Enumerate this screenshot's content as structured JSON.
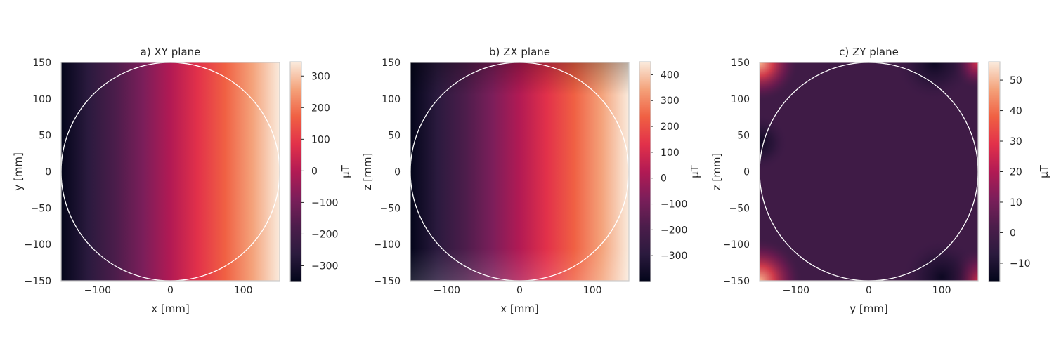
{
  "chart_data": [
    {
      "type": "heatmap",
      "title": "a) XY plane",
      "xlabel": "x [mm]",
      "ylabel": "y [mm]",
      "xlim": [
        -150,
        150
      ],
      "ylim": [
        -150,
        150
      ],
      "x_ticks": [
        -100,
        0,
        100
      ],
      "y_ticks": [
        -150,
        -100,
        -50,
        0,
        50,
        100,
        150
      ],
      "colorbar_label": "μT",
      "colorbar_range": [
        -350,
        345
      ],
      "colorbar_ticks": [
        -300,
        -200,
        -100,
        0,
        100,
        200,
        300
      ],
      "colormap": "rocket",
      "circle_radius": 150,
      "field": "linear gradient along x from about -350 μT at x=-150 to about 345 μT at x=150",
      "samples": [
        {
          "x": -150,
          "y": 0,
          "value": -350
        },
        {
          "x": -100,
          "y": 0,
          "value": -230
        },
        {
          "x": 0,
          "y": 0,
          "value": 0
        },
        {
          "x": 100,
          "y": 0,
          "value": 230
        },
        {
          "x": 150,
          "y": 0,
          "value": 345
        }
      ]
    },
    {
      "type": "heatmap",
      "title": "b) ZX plane",
      "xlabel": "x [mm]",
      "ylabel": "z [mm]",
      "xlim": [
        -150,
        150
      ],
      "ylim": [
        -150,
        150
      ],
      "x_ticks": [
        -100,
        0,
        100
      ],
      "y_ticks": [
        -150,
        -100,
        -50,
        0,
        50,
        100,
        150
      ],
      "colorbar_label": "μT",
      "colorbar_range": [
        -400,
        450
      ],
      "colorbar_ticks": [
        -300,
        -200,
        -100,
        0,
        100,
        200,
        300,
        400
      ],
      "colormap": "rocket",
      "circle_radius": 150,
      "field": "gradient along x from about -400 μT at x=-150 to about 450 μT at x=150, slightly stronger near the z edges",
      "samples": [
        {
          "x": -150,
          "y": 0,
          "value": -340
        },
        {
          "x": -150,
          "y": 150,
          "value": -400
        },
        {
          "x": 0,
          "y": 0,
          "value": 0
        },
        {
          "x": 150,
          "y": 0,
          "value": 340
        },
        {
          "x": 150,
          "y": -150,
          "value": 450
        }
      ]
    },
    {
      "type": "heatmap",
      "title": "c) ZY plane",
      "xlabel": "y [mm]",
      "ylabel": "z [mm]",
      "xlim": [
        -150,
        150
      ],
      "ylim": [
        -150,
        150
      ],
      "x_ticks": [
        -100,
        0,
        100
      ],
      "y_ticks": [
        -150,
        -100,
        -50,
        0,
        50,
        100,
        150
      ],
      "colorbar_label": "μT",
      "colorbar_range": [
        -16,
        56
      ],
      "colorbar_ticks": [
        -10,
        0,
        10,
        20,
        30,
        40,
        50
      ],
      "colormap": "rocket",
      "circle_radius": 150,
      "field": "nearly uniform about 2 μT inside the circle; hot spots near corners (-150,150), (-150,-150), (150,-150); dips near (90,145) and (100,-135)",
      "samples": [
        {
          "x": 0,
          "y": 0,
          "value": 2
        },
        {
          "x": -150,
          "y": 150,
          "value": 50
        },
        {
          "x": -150,
          "y": -150,
          "value": 54
        },
        {
          "x": 150,
          "y": -150,
          "value": 30
        },
        {
          "x": 150,
          "y": 150,
          "value": 18
        },
        {
          "x": 90,
          "y": 145,
          "value": -16
        },
        {
          "x": 100,
          "y": -135,
          "value": -14
        }
      ]
    }
  ]
}
